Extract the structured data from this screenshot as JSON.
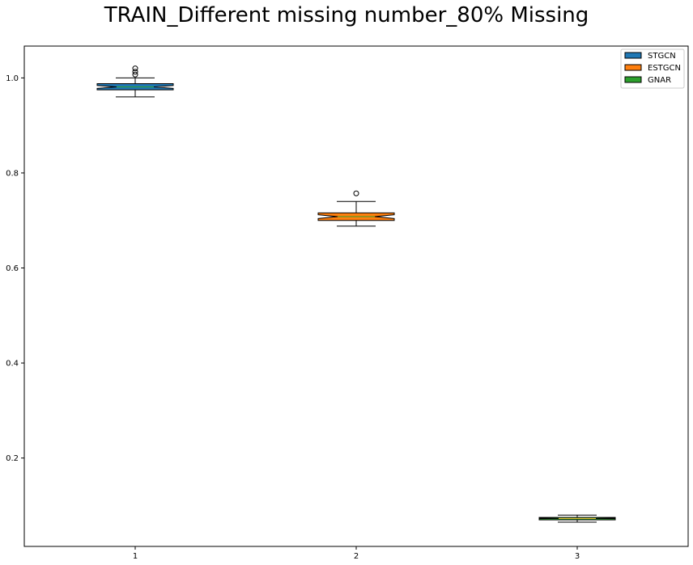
{
  "chart_data": {
    "type": "boxplot",
    "title": "TRAIN_Different missing number_80% Missing",
    "xlabel": "",
    "ylabel": "",
    "categories": [
      "1",
      "2",
      "3"
    ],
    "ylim": [
      0.014,
      1.067
    ],
    "yticks": [
      "0.2",
      "0.4",
      "0.6",
      "0.8",
      "1.0"
    ],
    "notched": true,
    "grid": false,
    "legend_position": "top-right",
    "series": [
      {
        "name": "STGCN",
        "color": "#1f77b4",
        "min": 0.96,
        "q1": 0.975,
        "median": 0.981,
        "q3": 0.988,
        "max": 1.0,
        "notch_low": 0.978,
        "notch_high": 0.984,
        "outliers": [
          1.007,
          1.013,
          1.02
        ]
      },
      {
        "name": "ESTGCN",
        "color": "#ff7f0e",
        "min": 0.688,
        "q1": 0.7,
        "median": 0.708,
        "q3": 0.716,
        "max": 0.74,
        "notch_low": 0.704,
        "notch_high": 0.712,
        "outliers": [
          0.757
        ]
      },
      {
        "name": "GNAR",
        "color": "#2ca02c",
        "min": 0.065,
        "q1": 0.07,
        "median": 0.073,
        "q3": 0.075,
        "max": 0.08,
        "notch_low": 0.0725,
        "notch_high": 0.0735,
        "outliers": []
      }
    ]
  }
}
